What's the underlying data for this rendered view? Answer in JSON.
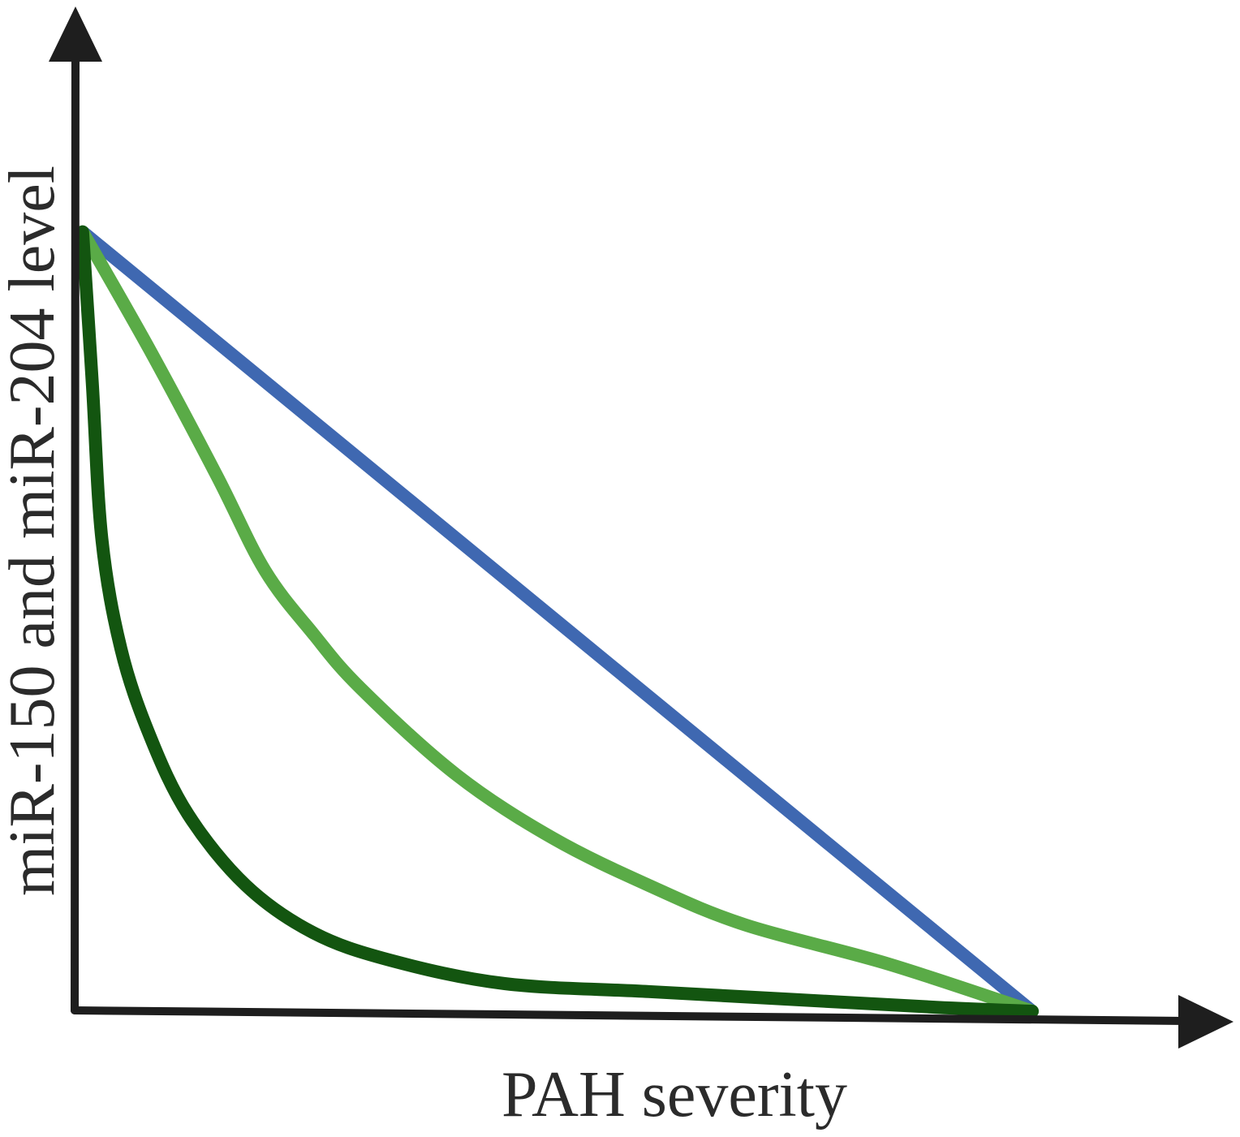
{
  "chart_data": {
    "type": "line",
    "title": "",
    "xlabel": "PAH severity",
    "ylabel": "miR-150 and miR-204 level",
    "xlim": [
      0,
      1
    ],
    "ylim": [
      0,
      1
    ],
    "grid": false,
    "legend": "none",
    "ticks": "none",
    "series": [
      {
        "color": "#3f68b1",
        "shape": "linear",
        "points": [
          [
            0.01,
            0.99
          ],
          [
            1.0,
            0.0
          ]
        ]
      },
      {
        "color": "#5aab47",
        "shape": "concave",
        "points": [
          [
            0.01,
            0.99
          ],
          [
            0.08,
            0.84
          ],
          [
            0.15,
            0.68
          ],
          [
            0.2,
            0.56
          ],
          [
            0.25,
            0.48
          ],
          [
            0.3,
            0.41
          ],
          [
            0.4,
            0.3
          ],
          [
            0.5,
            0.22
          ],
          [
            0.6,
            0.16
          ],
          [
            0.7,
            0.11
          ],
          [
            0.85,
            0.06
          ],
          [
            1.0,
            0.0
          ]
        ]
      },
      {
        "color": "#135510",
        "shape": "steeply concave",
        "points": [
          [
            0.01,
            0.99
          ],
          [
            0.02,
            0.8
          ],
          [
            0.03,
            0.6
          ],
          [
            0.05,
            0.46
          ],
          [
            0.08,
            0.35
          ],
          [
            0.12,
            0.25
          ],
          [
            0.18,
            0.16
          ],
          [
            0.25,
            0.1
          ],
          [
            0.33,
            0.065
          ],
          [
            0.45,
            0.035
          ],
          [
            0.6,
            0.025
          ],
          [
            0.75,
            0.015
          ],
          [
            0.9,
            0.005
          ],
          [
            1.0,
            0.0
          ]
        ]
      }
    ]
  }
}
